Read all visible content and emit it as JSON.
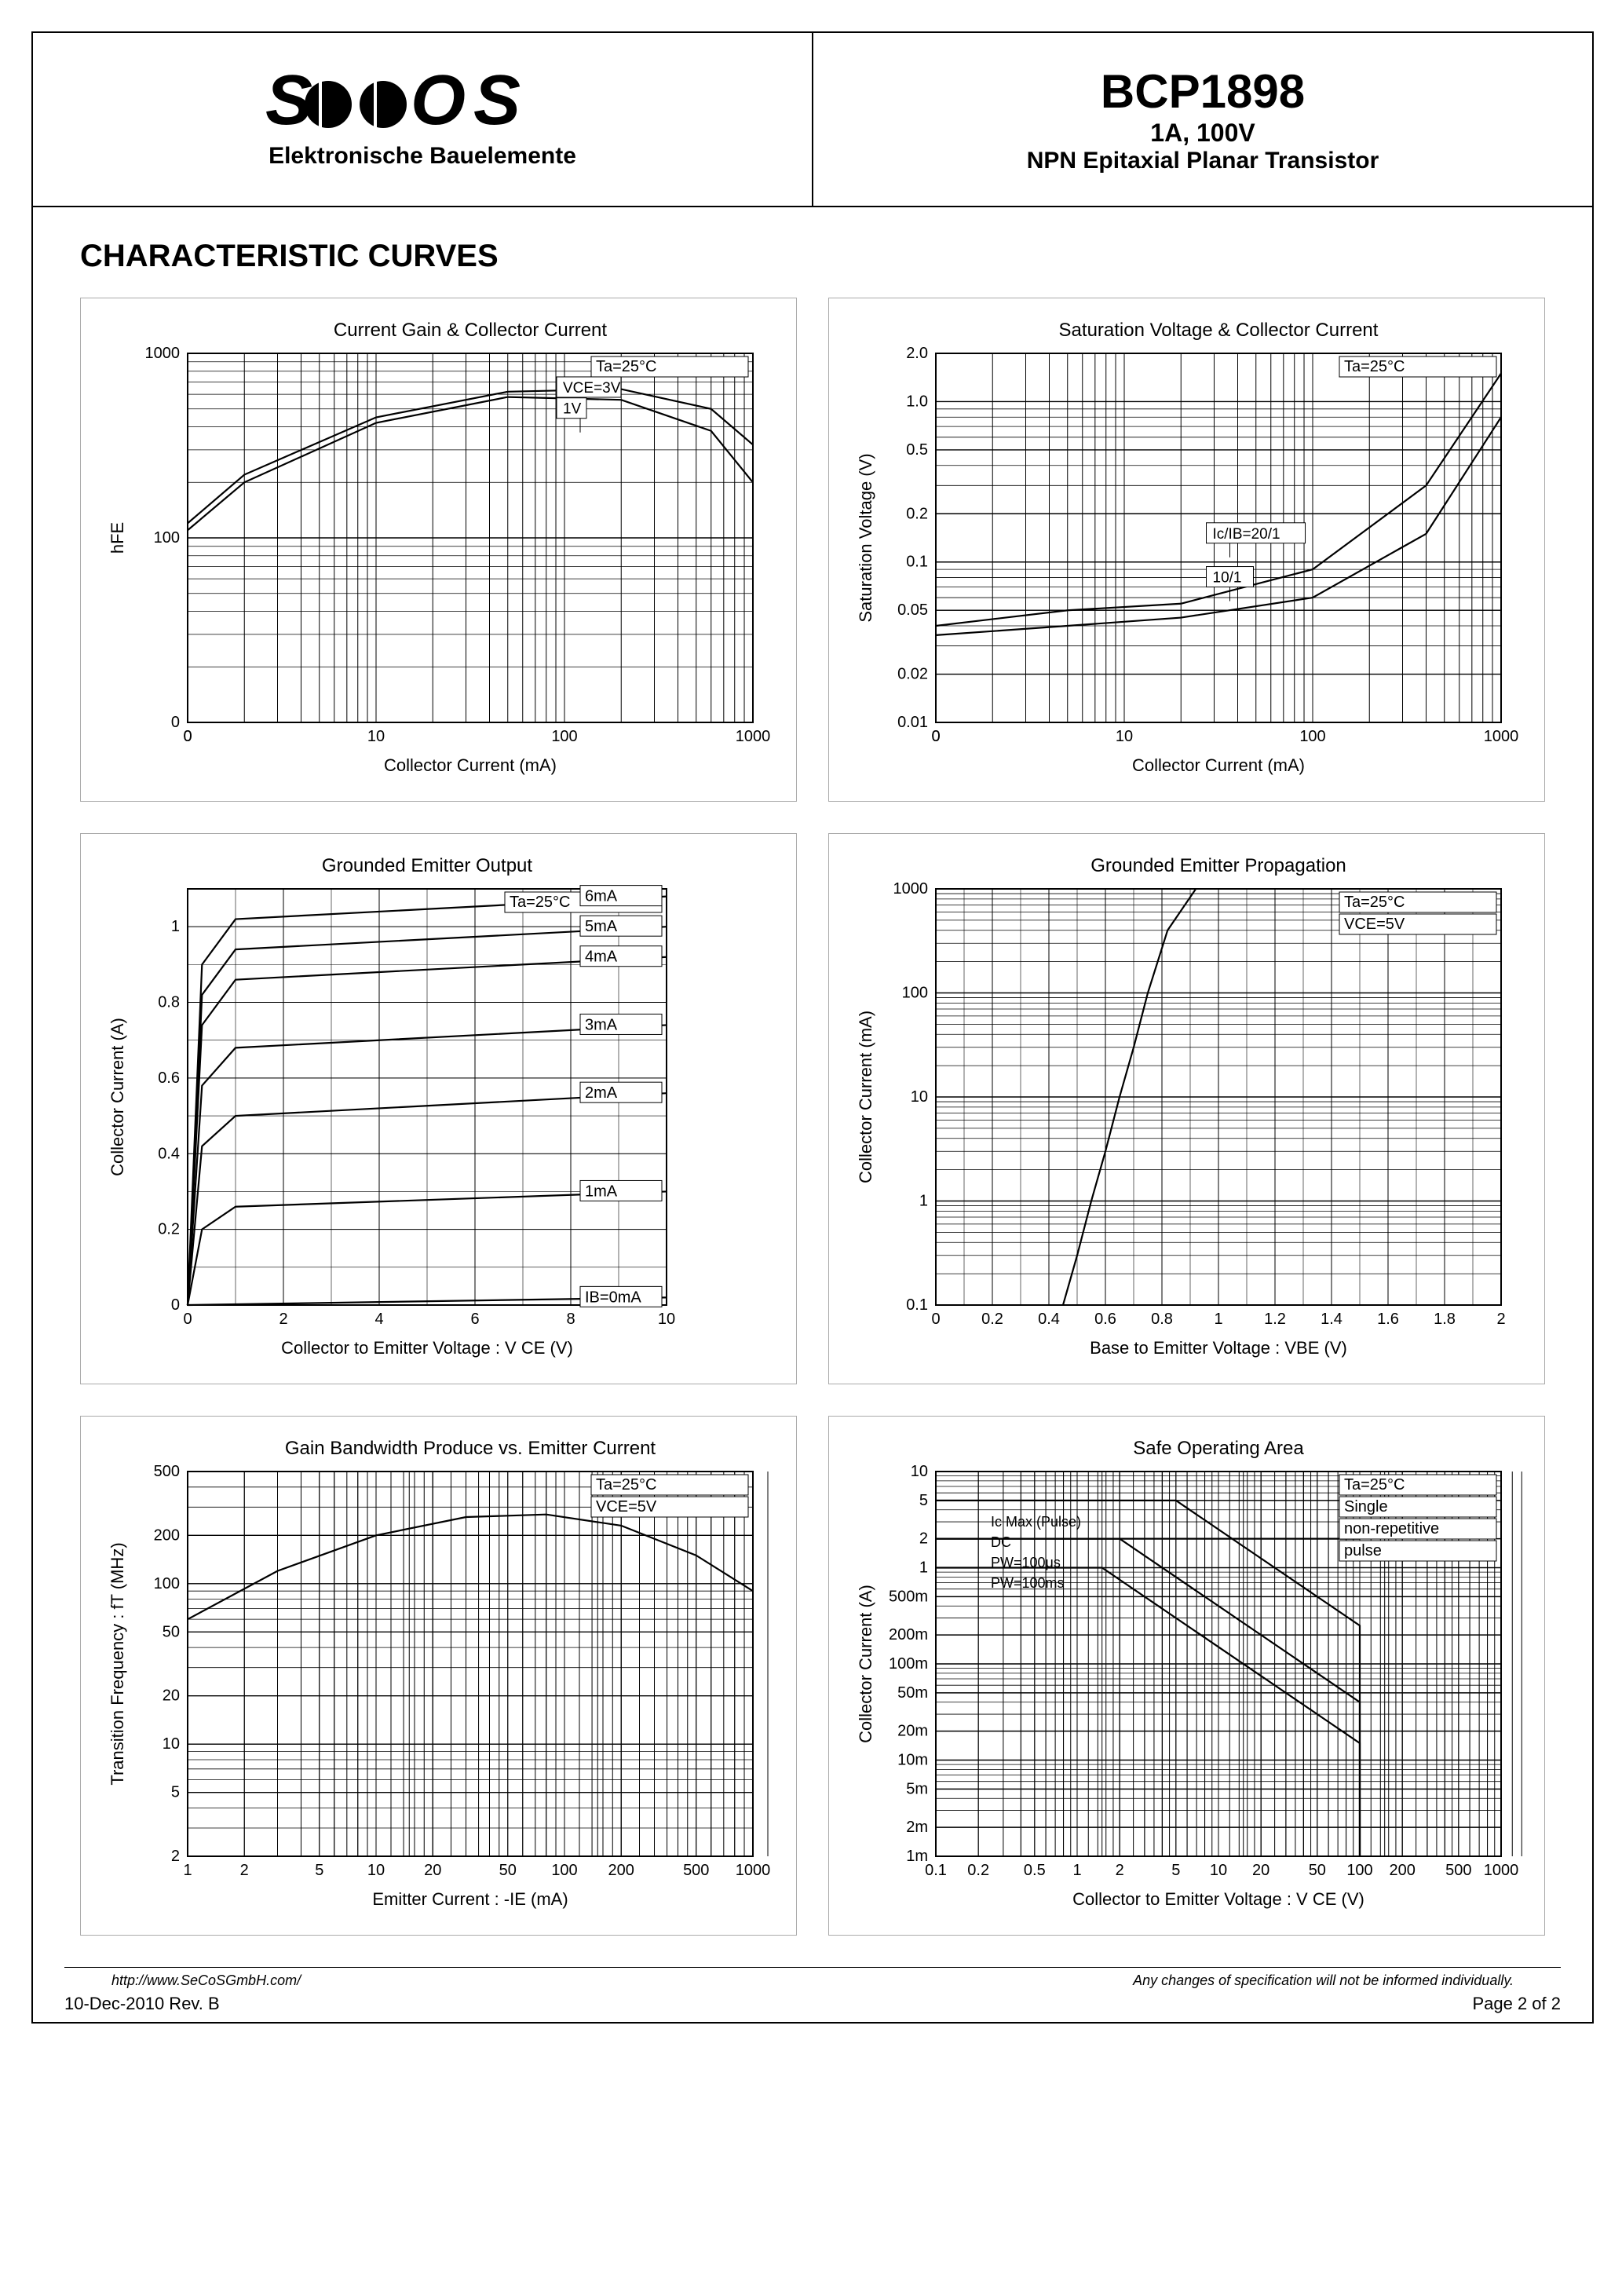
{
  "header": {
    "logo_text": "SECOS",
    "logo_sub": "Elektronische Bauelemente",
    "part_number": "BCP1898",
    "rating": "1A, 100V",
    "description": "NPN Epitaxial Planar Transistor"
  },
  "section_title": "CHARACTERISTIC CURVES",
  "footer": {
    "url": "http://www.SeCoSGmbH.com/",
    "disclaimer": "Any changes of specification will not be informed individually.",
    "date_rev": "10-Dec-2010 Rev. B",
    "page": "Page  2  of  2"
  },
  "colors": {
    "stroke": "#000000",
    "grid": "#000000",
    "bg": "#ffffff",
    "text": "#000000"
  },
  "chart1": {
    "type": "line",
    "title": "Current Gain & Collector Current",
    "xlabel": "Collector Current (mA)",
    "ylabel": "hFE",
    "cond": "Ta=25°C",
    "xscale": "log",
    "xticks": [
      0,
      10,
      100,
      1000
    ],
    "xtick_labels": [
      "0",
      "10",
      "100",
      "1000"
    ],
    "yscale": "log",
    "yticks": [
      0,
      100,
      1000
    ],
    "ytick_labels": [
      "0",
      "100",
      "1000"
    ],
    "series": [
      {
        "label": "VCE=3V",
        "ref_x": 100,
        "ref_y": 650,
        "points": [
          [
            0.5,
            120
          ],
          [
            2,
            220
          ],
          [
            10,
            450
          ],
          [
            50,
            620
          ],
          [
            200,
            640
          ],
          [
            600,
            500
          ],
          [
            1000,
            320
          ]
        ]
      },
      {
        "label": "1V",
        "ref_x": 100,
        "ref_y": 500,
        "points": [
          [
            0.5,
            110
          ],
          [
            2,
            200
          ],
          [
            10,
            420
          ],
          [
            50,
            580
          ],
          [
            200,
            560
          ],
          [
            600,
            380
          ],
          [
            1000,
            200
          ]
        ]
      }
    ]
  },
  "chart2": {
    "type": "line",
    "title": "Saturation Voltage & Collector Current",
    "xlabel": "Collector Current (mA)",
    "ylabel": "Saturation Voltage (V)",
    "cond": "Ta=25°C",
    "xscale": "log",
    "xticks": [
      0,
      10,
      100,
      1000
    ],
    "xtick_labels": [
      "0",
      "10",
      "100",
      "1000"
    ],
    "yscale": "log",
    "yticks": [
      0.01,
      0.02,
      0.05,
      0.1,
      0.2,
      0.5,
      1.0,
      2.0
    ],
    "ytick_labels": [
      "0.01",
      "0.02",
      "0.05",
      "0.1",
      "0.2",
      "0.5",
      "1.0",
      "2.0"
    ],
    "series": [
      {
        "label": "Ic/IB=20/1",
        "ref_x": 30,
        "ref_y": 0.15,
        "points": [
          [
            1,
            0.04
          ],
          [
            5,
            0.05
          ],
          [
            20,
            0.055
          ],
          [
            100,
            0.09
          ],
          [
            400,
            0.3
          ],
          [
            1000,
            1.5
          ]
        ]
      },
      {
        "label": "10/1",
        "ref_x": 30,
        "ref_y": 0.08,
        "points": [
          [
            1,
            0.035
          ],
          [
            5,
            0.04
          ],
          [
            20,
            0.045
          ],
          [
            100,
            0.06
          ],
          [
            400,
            0.15
          ],
          [
            1000,
            0.8
          ]
        ]
      }
    ]
  },
  "chart3": {
    "type": "line",
    "title": "Grounded Emitter Output",
    "xlabel": "Collector to Emitter Voltage : V CE (V)",
    "ylabel": "Collector Current (A)",
    "cond": "Ta=25°C",
    "xscale": "linear",
    "xlim": [
      0,
      10
    ],
    "xticks": [
      0,
      2,
      4,
      6,
      8,
      10
    ],
    "yscale": "linear",
    "ylim": [
      0,
      1.1
    ],
    "yticks": [
      0,
      0.2,
      0.4,
      0.6,
      0.8,
      1.0
    ],
    "series": [
      {
        "label": "6mA",
        "points": [
          [
            0,
            0
          ],
          [
            0.3,
            0.9
          ],
          [
            1,
            1.02
          ],
          [
            10,
            1.08
          ]
        ]
      },
      {
        "label": "5mA",
        "points": [
          [
            0,
            0
          ],
          [
            0.3,
            0.82
          ],
          [
            1,
            0.94
          ],
          [
            10,
            1.0
          ]
        ]
      },
      {
        "label": "4mA",
        "points": [
          [
            0,
            0
          ],
          [
            0.3,
            0.74
          ],
          [
            1,
            0.86
          ],
          [
            10,
            0.92
          ]
        ]
      },
      {
        "label": "3mA",
        "points": [
          [
            0,
            0
          ],
          [
            0.3,
            0.58
          ],
          [
            1,
            0.68
          ],
          [
            10,
            0.74
          ]
        ]
      },
      {
        "label": "2mA",
        "points": [
          [
            0,
            0
          ],
          [
            0.3,
            0.42
          ],
          [
            1,
            0.5
          ],
          [
            10,
            0.56
          ]
        ]
      },
      {
        "label": "1mA",
        "points": [
          [
            0,
            0
          ],
          [
            0.3,
            0.2
          ],
          [
            1,
            0.26
          ],
          [
            10,
            0.3
          ]
        ]
      },
      {
        "label": "IB=0mA",
        "points": [
          [
            0,
            0
          ],
          [
            10,
            0.02
          ]
        ]
      }
    ]
  },
  "chart4": {
    "type": "line",
    "title": "Grounded Emitter Propagation",
    "xlabel": "Base to Emitter Voltage : VBE (V)",
    "ylabel": "Collector Current (mA)",
    "cond1": "Ta=25°C",
    "cond2": "VCE=5V",
    "xscale": "linear",
    "xlim": [
      0,
      2.0
    ],
    "xticks": [
      0,
      0.2,
      0.4,
      0.6,
      0.8,
      1.0,
      1.2,
      1.4,
      1.6,
      1.8,
      2.0
    ],
    "yscale": "log",
    "yticks": [
      0.1,
      1,
      10,
      100,
      1000
    ],
    "ytick_labels": [
      "0.1",
      "1",
      "10",
      "100",
      "1000"
    ],
    "series": [
      {
        "label": "",
        "points": [
          [
            0.45,
            0.1
          ],
          [
            0.5,
            0.3
          ],
          [
            0.55,
            1
          ],
          [
            0.6,
            3
          ],
          [
            0.65,
            10
          ],
          [
            0.7,
            30
          ],
          [
            0.75,
            100
          ],
          [
            0.82,
            400
          ],
          [
            0.92,
            1000
          ]
        ]
      }
    ]
  },
  "chart5": {
    "type": "line",
    "title": "Gain Bandwidth Produce vs. Emitter Current",
    "xlabel": "Emitter Current : -IE (mA)",
    "ylabel": "Transition Frequency : fT (MHz)",
    "cond1": "Ta=25°C",
    "cond2": "VCE=5V",
    "xscale": "log",
    "xticks": [
      1,
      2,
      5,
      10,
      20,
      50,
      100,
      200,
      500,
      1000
    ],
    "xtick_labels": [
      "1",
      "2",
      "5",
      "10",
      "20",
      "50",
      "100",
      "200",
      "500",
      "1000"
    ],
    "yscale": "log",
    "yticks": [
      2,
      5,
      10,
      20,
      50,
      100,
      200,
      500
    ],
    "ytick_labels": [
      "2",
      "5",
      "10",
      "20",
      "50",
      "100",
      "200",
      "500"
    ],
    "series": [
      {
        "label": "",
        "points": [
          [
            1,
            60
          ],
          [
            3,
            120
          ],
          [
            10,
            200
          ],
          [
            30,
            260
          ],
          [
            80,
            270
          ],
          [
            200,
            230
          ],
          [
            500,
            150
          ],
          [
            1000,
            90
          ]
        ]
      }
    ]
  },
  "chart6": {
    "type": "line",
    "title": "Safe Operating Area",
    "xlabel": "Collector to Emitter Voltage : V CE (V)",
    "ylabel": "Collector Current (A)",
    "cond1": "Ta=25°C",
    "cond2": "Single",
    "cond3": "non-repetitive",
    "cond4": "pulse",
    "xscale": "log",
    "xticks": [
      0.1,
      0.2,
      0.5,
      1,
      2,
      5,
      10,
      20,
      50,
      100,
      200,
      500,
      1000
    ],
    "xtick_labels": [
      "0.1",
      "0.2",
      "0.5",
      "1",
      "2",
      "5",
      "10",
      "20",
      "50",
      "100",
      "200",
      "500",
      "1000"
    ],
    "yscale": "log",
    "yticks": [
      0.001,
      0.002,
      0.005,
      0.01,
      0.02,
      0.05,
      0.1,
      0.2,
      0.5,
      1,
      2,
      5,
      10
    ],
    "ytick_labels": [
      "1m",
      "2m",
      "5m",
      "10m",
      "20m",
      "50m",
      "100m",
      "200m",
      "500m",
      "1",
      "2",
      "5",
      "10"
    ],
    "labels_in": [
      "Ic Max (Pulse)",
      "DC",
      "PW=100μs",
      "PW=100ms"
    ],
    "series": [
      {
        "label": "DC",
        "points": [
          [
            0.1,
            1
          ],
          [
            1,
            1
          ],
          [
            1.5,
            1
          ],
          [
            10,
            0.15
          ],
          [
            100,
            0.015
          ],
          [
            100,
            0.001
          ]
        ]
      },
      {
        "label": "100ms",
        "points": [
          [
            0.1,
            2
          ],
          [
            2,
            2
          ],
          [
            20,
            0.2
          ],
          [
            100,
            0.04
          ],
          [
            100,
            0.001
          ]
        ]
      },
      {
        "label": "100us",
        "points": [
          [
            0.1,
            5
          ],
          [
            5,
            5
          ],
          [
            50,
            0.5
          ],
          [
            100,
            0.25
          ],
          [
            100,
            0.001
          ]
        ]
      },
      {
        "label": "IcMax",
        "points": [
          [
            0.1,
            2
          ],
          [
            100,
            2
          ]
        ]
      }
    ]
  }
}
